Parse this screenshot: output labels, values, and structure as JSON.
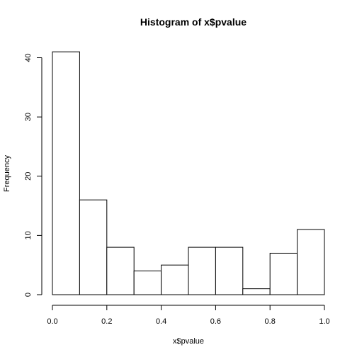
{
  "chart_data": {
    "type": "bar",
    "title": "Histogram of x$pvalue",
    "xlabel": "x$pvalue",
    "ylabel": "Frequency",
    "bin_edges": [
      0.0,
      0.1,
      0.2,
      0.3,
      0.4,
      0.5,
      0.6,
      0.7,
      0.8,
      0.9,
      1.0
    ],
    "values": [
      41,
      16,
      8,
      4,
      5,
      8,
      8,
      1,
      7,
      11
    ],
    "xlim": [
      0.0,
      1.0
    ],
    "ylim": [
      0,
      40
    ],
    "x_ticks": [
      {
        "value": 0.0,
        "label": "0.0"
      },
      {
        "value": 0.2,
        "label": "0.2"
      },
      {
        "value": 0.4,
        "label": "0.4"
      },
      {
        "value": 0.6,
        "label": "0.6"
      },
      {
        "value": 0.8,
        "label": "0.8"
      },
      {
        "value": 1.0,
        "label": "1.0"
      }
    ],
    "y_ticks": [
      {
        "value": 0,
        "label": "0"
      },
      {
        "value": 10,
        "label": "10"
      },
      {
        "value": 20,
        "label": "20"
      },
      {
        "value": 30,
        "label": "30"
      },
      {
        "value": 40,
        "label": "40"
      }
    ],
    "grid": false,
    "legend": "none",
    "bar_fill": "#ffffff",
    "bar_stroke": "#000000"
  }
}
